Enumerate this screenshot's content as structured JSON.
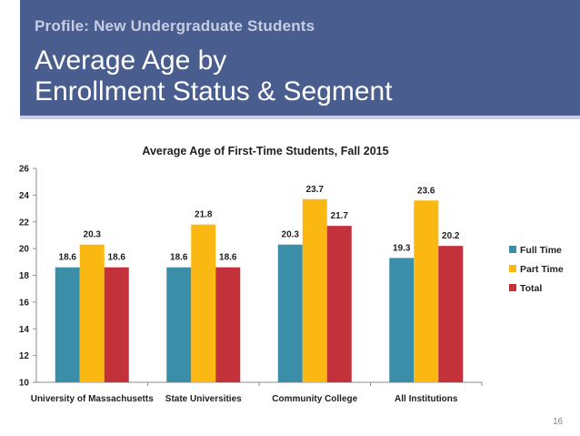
{
  "slide": {
    "subtitle": "Profile: New Undergraduate Students",
    "title_line1": "Average Age by",
    "title_line2": "Enrollment Status & Segment",
    "page_number": "16"
  },
  "colors": {
    "header_bg": "#4a5d8f",
    "Full Time": "#3a8ea8",
    "Part Time": "#fbb813",
    "Total": "#c3313a"
  },
  "chart_data": {
    "type": "bar",
    "title": "Average Age of First-Time Students, Fall 2015",
    "categories": [
      "University of Massachusetts",
      "State Universities",
      "Community College",
      "All Institutions"
    ],
    "series": [
      {
        "name": "Full Time",
        "values": [
          18.6,
          18.6,
          20.3,
          19.3
        ]
      },
      {
        "name": "Part Time",
        "values": [
          20.3,
          21.8,
          23.7,
          23.6
        ]
      },
      {
        "name": "Total",
        "values": [
          18.6,
          18.6,
          21.7,
          20.2
        ]
      }
    ],
    "value_labels": [
      [
        "18.6",
        "18.6",
        "20.3",
        "19.3"
      ],
      [
        "20.3",
        "21.8",
        "23.7",
        "23.6"
      ],
      [
        "18.6",
        "18.6",
        "21.7",
        "20.2"
      ]
    ],
    "ylim": [
      10,
      26
    ],
    "yticks": [
      10,
      12,
      14,
      16,
      18,
      20,
      22,
      24,
      26
    ],
    "xlabel": "",
    "ylabel": "",
    "legend_position": "right",
    "grid": false
  }
}
